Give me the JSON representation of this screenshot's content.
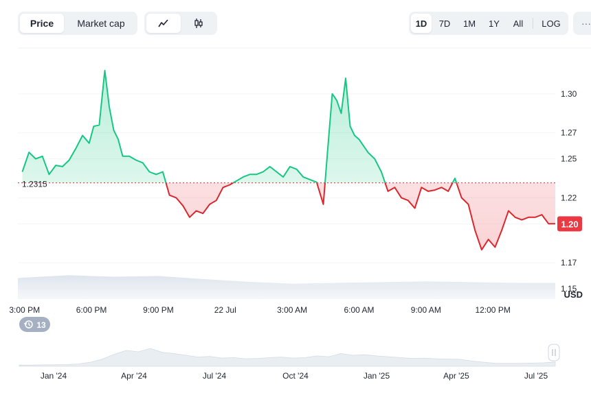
{
  "toolbar": {
    "view_tabs": [
      "Price",
      "Market cap"
    ],
    "active_view": "Price",
    "chart_style_icons": [
      "line-chart-icon",
      "candlestick-icon"
    ],
    "ranges": [
      "1D",
      "7D",
      "1M",
      "1Y",
      "All",
      "LOG"
    ],
    "active_range": "1D",
    "more_label": "···"
  },
  "colors": {
    "up": "#16c784",
    "down": "#d9272d",
    "reference_line": "#d9272d"
  },
  "chart_data": {
    "type": "area",
    "reference_value": 1.2315,
    "reference_label": "1.2315",
    "current_label": "1.20",
    "y_unit": "USD",
    "ylim": [
      1.14,
      1.33
    ],
    "y_ticks": [
      "1.30",
      "1.27",
      "1.25",
      "1.22",
      "1.20",
      "1.17",
      "1.15"
    ],
    "x_ticks": [
      "3:00 PM",
      "6:00 PM",
      "9:00 PM",
      "22 Jul",
      "3:00 AM",
      "6:00 AM",
      "9:00 AM",
      "12:00 PM"
    ],
    "x_hours": [
      0,
      3,
      6,
      9,
      12,
      15,
      18,
      21
    ],
    "x_range_hours": [
      -0.3,
      23.8
    ],
    "price_series": {
      "x_hours": [
        -0.1,
        0.2,
        0.5,
        0.8,
        1.1,
        1.4,
        1.7,
        2.0,
        2.3,
        2.6,
        2.9,
        3.1,
        3.35,
        3.6,
        3.8,
        4.0,
        4.2,
        4.4,
        4.7,
        5.0,
        5.3,
        5.6,
        5.9,
        6.2,
        6.5,
        6.8,
        7.1,
        7.4,
        7.7,
        8.0,
        8.3,
        8.6,
        8.9,
        9.2,
        9.5,
        9.8,
        10.1,
        10.4,
        10.7,
        11.0,
        11.3,
        11.6,
        11.9,
        12.2,
        12.5,
        12.8,
        13.1,
        13.4,
        13.6,
        13.8,
        14.0,
        14.2,
        14.4,
        14.6,
        14.8,
        15.0,
        15.2,
        15.4,
        15.7,
        16.0,
        16.3,
        16.6,
        16.9,
        17.2,
        17.5,
        17.8,
        18.1,
        18.4,
        18.7,
        19.0,
        19.3,
        19.6,
        19.9,
        20.2,
        20.5,
        20.8,
        21.1,
        21.4,
        21.7,
        22.0,
        22.3,
        22.6,
        22.9,
        23.2,
        23.5,
        23.8
      ],
      "values": [
        1.24,
        1.255,
        1.25,
        1.252,
        1.238,
        1.245,
        1.244,
        1.249,
        1.258,
        1.268,
        1.262,
        1.275,
        1.276,
        1.318,
        1.29,
        1.272,
        1.265,
        1.252,
        1.252,
        1.249,
        1.247,
        1.24,
        1.238,
        1.24,
        1.222,
        1.22,
        1.214,
        1.205,
        1.21,
        1.208,
        1.215,
        1.218,
        1.228,
        1.23,
        1.233,
        1.236,
        1.238,
        1.238,
        1.24,
        1.244,
        1.24,
        1.236,
        1.244,
        1.242,
        1.236,
        1.234,
        1.232,
        1.215,
        1.258,
        1.3,
        1.295,
        1.285,
        1.312,
        1.275,
        1.268,
        1.265,
        1.26,
        1.255,
        1.25,
        1.24,
        1.225,
        1.228,
        1.22,
        1.218,
        1.212,
        1.228,
        1.225,
        1.226,
        1.228,
        1.225,
        1.235,
        1.22,
        1.215,
        1.195,
        1.18,
        1.188,
        1.182,
        1.195,
        1.21,
        1.205,
        1.203,
        1.205,
        1.205,
        1.207,
        1.2,
        1.2
      ]
    },
    "volume_series": {
      "x_hours": [
        -0.3,
        2,
        4,
        6,
        8,
        10,
        12,
        14,
        16,
        18,
        20,
        22,
        23.8
      ],
      "values": [
        0.55,
        0.62,
        0.58,
        0.6,
        0.52,
        0.45,
        0.4,
        0.42,
        0.44,
        0.46,
        0.44,
        0.42,
        0.42
      ]
    },
    "navigator": {
      "labels": [
        "Jan '24",
        "Apr '24",
        "Jul '24",
        "Oct '24",
        "Jan '25",
        "Apr '25",
        "Jul '25"
      ],
      "comments_count": "13",
      "values": [
        0.04,
        0.04,
        0.05,
        0.05,
        0.06,
        0.08,
        0.14,
        0.25,
        0.42,
        0.55,
        0.5,
        0.62,
        0.48,
        0.44,
        0.38,
        0.32,
        0.34,
        0.28,
        0.3,
        0.26,
        0.27,
        0.3,
        0.32,
        0.28,
        0.3,
        0.36,
        0.33,
        0.44,
        0.38,
        0.4,
        0.36,
        0.33,
        0.3,
        0.27,
        0.28,
        0.26,
        0.25,
        0.24,
        0.18,
        0.14,
        0.1,
        0.1,
        0.1,
        0.11,
        0.12,
        0.15
      ]
    }
  }
}
